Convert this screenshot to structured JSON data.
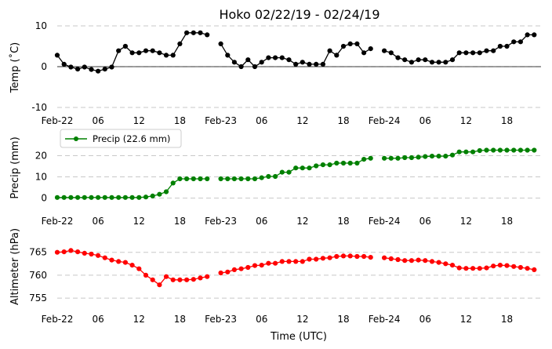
{
  "chart_data": {
    "type": "line",
    "title": "Hoko 02/22/19 - 02/24/19",
    "xlabel": "Time (UTC)",
    "x_tick_labels": [
      "Feb-22",
      "06",
      "12",
      "18",
      "Feb-23",
      "06",
      "12",
      "18",
      "Feb-24",
      "06",
      "12",
      "18"
    ],
    "x_tick_hours": [
      0,
      6,
      12,
      18,
      24,
      30,
      36,
      42,
      48,
      54,
      60,
      66
    ],
    "x_range_hours": [
      0,
      71
    ],
    "panels": [
      {
        "ylabel": "Temp ($^\\circ$C)",
        "ylabel_display": "Temp (˚C)",
        "ylim": [
          -10,
          10
        ],
        "yticks": [
          -10,
          0,
          10
        ],
        "grid": "horizontal-dashed",
        "zero_line": true,
        "series": [
          {
            "color": "#000000",
            "hours": [
              0,
              1,
              2,
              3,
              4,
              5,
              6,
              7,
              8,
              9,
              10,
              11,
              12,
              13,
              14,
              15,
              16,
              17,
              18,
              19,
              20,
              21,
              22,
              23,
              24,
              25,
              26,
              27,
              28,
              29,
              30,
              31,
              32,
              33,
              34,
              35,
              36,
              37,
              38,
              39,
              40,
              41,
              42,
              43,
              44,
              45,
              46,
              47,
              48,
              49,
              50,
              51,
              52,
              53,
              54,
              55,
              56,
              57,
              58,
              59,
              60,
              61,
              62,
              63,
              64,
              65,
              66,
              67,
              68,
              69,
              70,
              71
            ],
            "values": [
              2.8,
              0.6,
              -0.1,
              -0.6,
              -0.1,
              -0.7,
              -1.1,
              -0.6,
              -0.1,
              3.9,
              5.0,
              3.4,
              3.4,
              3.9,
              3.9,
              3.4,
              2.8,
              2.8,
              5.6,
              8.3,
              8.3,
              8.3,
              7.8,
              null,
              5.6,
              2.8,
              1.1,
              0.0,
              1.7,
              0.0,
              1.1,
              2.2,
              2.2,
              2.2,
              1.7,
              0.6,
              1.1,
              0.6,
              0.6,
              0.6,
              3.9,
              2.8,
              5.0,
              5.6,
              5.6,
              3.4,
              4.4,
              null,
              3.9,
              3.4,
              2.2,
              1.7,
              1.1,
              1.7,
              1.7,
              1.1,
              1.1,
              1.1,
              1.7,
              3.4,
              3.4,
              3.4,
              3.4,
              3.9,
              3.9,
              5.0,
              5.0,
              6.1,
              6.1,
              7.8,
              7.8,
              null
            ]
          }
        ]
      },
      {
        "ylabel": "Precip (mm)",
        "ylim": [
          -2,
          25
        ],
        "yticks": [
          0,
          10,
          20
        ],
        "grid": "horizontal-dashed",
        "legend": {
          "label": "Precip (22.6 mm)",
          "position": "upper-left"
        },
        "series": [
          {
            "name": "Precip (22.6 mm)",
            "color": "#008000",
            "hours": [
              0,
              1,
              2,
              3,
              4,
              5,
              6,
              7,
              8,
              9,
              10,
              11,
              12,
              13,
              14,
              15,
              16,
              17,
              18,
              19,
              20,
              21,
              22,
              23,
              24,
              25,
              26,
              27,
              28,
              29,
              30,
              31,
              32,
              33,
              34,
              35,
              36,
              37,
              38,
              39,
              40,
              41,
              42,
              43,
              44,
              45,
              46,
              47,
              48,
              49,
              50,
              51,
              52,
              53,
              54,
              55,
              56,
              57,
              58,
              59,
              60,
              61,
              62,
              63,
              64,
              65,
              66,
              67,
              68,
              69,
              70,
              71
            ],
            "values": [
              0.3,
              0.3,
              0.3,
              0.3,
              0.3,
              0.3,
              0.3,
              0.3,
              0.3,
              0.3,
              0.3,
              0.3,
              0.3,
              0.5,
              1.0,
              1.8,
              3.0,
              7.1,
              9.1,
              9.1,
              9.1,
              9.1,
              9.1,
              null,
              9.1,
              9.1,
              9.1,
              9.1,
              9.1,
              9.1,
              9.6,
              10.2,
              10.2,
              12.2,
              12.2,
              14.2,
              14.2,
              14.2,
              15.2,
              15.7,
              15.7,
              16.5,
              16.5,
              16.5,
              16.5,
              18.3,
              18.8,
              null,
              18.8,
              18.8,
              18.8,
              19.1,
              19.1,
              19.3,
              19.6,
              19.8,
              19.8,
              19.8,
              20.3,
              21.8,
              21.8,
              21.8,
              22.4,
              22.6,
              22.6,
              22.6,
              22.6,
              22.6,
              22.6,
              22.6,
              22.6,
              null
            ]
          }
        ]
      },
      {
        "ylabel": "Altimeter (hPa)",
        "ylim": [
          754,
          767
        ],
        "yticks": [
          755,
          760,
          765
        ],
        "grid": "horizontal-dashed",
        "series": [
          {
            "color": "#ff0000",
            "hours": [
              0,
              1,
              2,
              3,
              4,
              5,
              6,
              7,
              8,
              9,
              10,
              11,
              12,
              13,
              14,
              15,
              16,
              17,
              18,
              19,
              20,
              21,
              22,
              23,
              24,
              25,
              26,
              27,
              28,
              29,
              30,
              31,
              32,
              33,
              34,
              35,
              36,
              37,
              38,
              39,
              40,
              41,
              42,
              43,
              44,
              45,
              46,
              47,
              48,
              49,
              50,
              51,
              52,
              53,
              54,
              55,
              56,
              57,
              58,
              59,
              60,
              61,
              62,
              63,
              64,
              65,
              66,
              67,
              68,
              69,
              70,
              71
            ],
            "values": [
              765.0,
              765.1,
              765.4,
              765.1,
              764.8,
              764.6,
              764.3,
              763.8,
              763.3,
              763.0,
              762.8,
              762.2,
              761.4,
              760.0,
              759.0,
              757.9,
              759.7,
              759.0,
              759.0,
              759.0,
              759.1,
              759.4,
              759.7,
              null,
              760.5,
              760.7,
              761.2,
              761.4,
              761.7,
              762.1,
              762.2,
              762.6,
              762.6,
              763.0,
              763.0,
              763.0,
              763.0,
              763.5,
              763.5,
              763.7,
              763.8,
              764.1,
              764.2,
              764.2,
              764.1,
              764.1,
              763.9,
              null,
              763.8,
              763.6,
              763.4,
              763.2,
              763.2,
              763.3,
              763.2,
              763.0,
              762.8,
              762.5,
              762.2,
              761.6,
              761.5,
              761.5,
              761.5,
              761.6,
              762.0,
              762.2,
              762.1,
              761.9,
              761.7,
              761.5,
              761.2,
              null
            ]
          }
        ]
      }
    ]
  }
}
